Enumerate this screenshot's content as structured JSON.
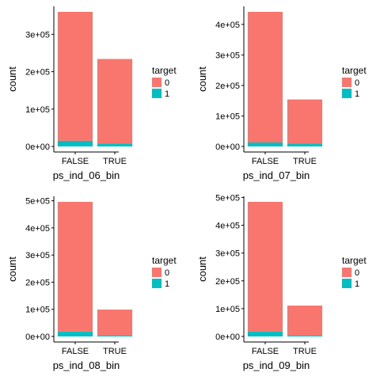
{
  "colors": {
    "target_0": "#F8766D",
    "target_1": "#00BFC4",
    "axis": "#000000"
  },
  "chart_data": [
    {
      "type": "bar",
      "stacked": true,
      "categories": [
        "FALSE",
        "TRUE"
      ],
      "series": [
        {
          "name": "0",
          "values": [
            345000,
            226000
          ]
        },
        {
          "name": "1",
          "values": [
            15000,
            8000
          ]
        }
      ],
      "ylim": [
        0,
        360000
      ],
      "yticks": [
        0,
        100000,
        200000,
        300000
      ],
      "ytick_labels": [
        "0e+00",
        "1e+05",
        "2e+05",
        "3e+05"
      ],
      "xlabel": "ps_ind_06_bin",
      "ylabel": "count",
      "legend": {
        "title": "target",
        "labels": [
          "0",
          "1"
        ],
        "position": "right"
      },
      "grid": false
    },
    {
      "type": "bar",
      "stacked": true,
      "categories": [
        "FALSE",
        "TRUE"
      ],
      "series": [
        {
          "name": "0",
          "values": [
            428000,
            145000
          ]
        },
        {
          "name": "1",
          "values": [
            13000,
            9000
          ]
        }
      ],
      "ylim": [
        0,
        441000
      ],
      "yticks": [
        0,
        100000,
        200000,
        300000,
        400000
      ],
      "ytick_labels": [
        "0e+00",
        "1e+05",
        "2e+05",
        "3e+05",
        "4e+05"
      ],
      "xlabel": "ps_ind_07_bin",
      "ylabel": "count",
      "legend": {
        "title": "target",
        "labels": [
          "0",
          "1"
        ],
        "position": "right"
      },
      "grid": false
    },
    {
      "type": "bar",
      "stacked": true,
      "categories": [
        "FALSE",
        "TRUE"
      ],
      "series": [
        {
          "name": "0",
          "values": [
            478000,
            95000
          ]
        },
        {
          "name": "1",
          "values": [
            18000,
            4000
          ]
        }
      ],
      "ylim": [
        0,
        496000
      ],
      "yticks": [
        0,
        100000,
        200000,
        300000,
        400000,
        500000
      ],
      "ytick_labels": [
        "0e+00",
        "1e+05",
        "2e+05",
        "3e+05",
        "4e+05",
        "5e+05"
      ],
      "xlabel": "ps_ind_08_bin",
      "ylabel": "count",
      "legend": {
        "title": "target",
        "labels": [
          "0",
          "1"
        ],
        "position": "right"
      },
      "grid": false
    },
    {
      "type": "bar",
      "stacked": true,
      "categories": [
        "FALSE",
        "TRUE"
      ],
      "series": [
        {
          "name": "0",
          "values": [
            466000,
            108000
          ]
        },
        {
          "name": "1",
          "values": [
            18000,
            3000
          ]
        }
      ],
      "ylim": [
        0,
        484000
      ],
      "yticks": [
        0,
        100000,
        200000,
        300000,
        400000,
        500000
      ],
      "ytick_labels": [
        "0e+00",
        "1e+05",
        "2e+05",
        "3e+05",
        "4e+05",
        "5e+05"
      ],
      "xlabel": "ps_ind_09_bin",
      "ylabel": "count",
      "legend": {
        "title": "target",
        "labels": [
          "0",
          "1"
        ],
        "position": "right"
      },
      "grid": false
    }
  ]
}
